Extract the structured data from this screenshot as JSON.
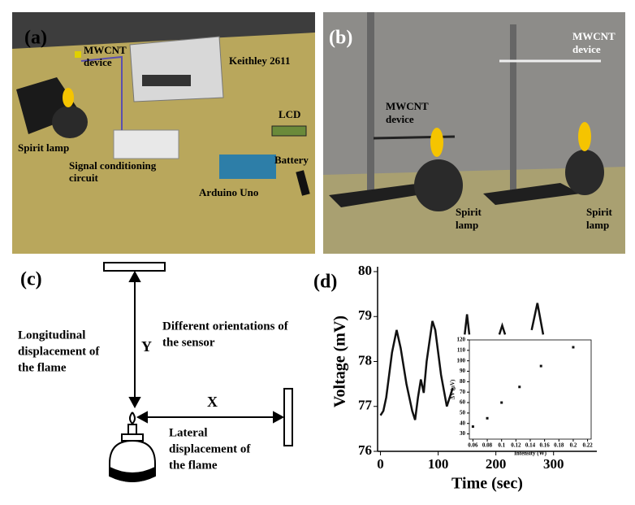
{
  "panel_a": {
    "label": "(a)",
    "mwcnt": [
      "MWCNT",
      "device"
    ],
    "keithley": "Keithley 2611",
    "lamp": "Spirit lamp",
    "lcd": "LCD",
    "circuit": [
      "Signal conditioning",
      "circuit"
    ],
    "battery": "Battery",
    "arduino": "Arduino Uno"
  },
  "panel_b": {
    "label": "(b)",
    "mwcnt_right": [
      "MWCNT",
      "device"
    ],
    "mwcnt_left": [
      "MWCNT",
      "device"
    ],
    "lamp_left": [
      "Spirit",
      "lamp"
    ],
    "lamp_right": [
      "Spirit",
      "lamp"
    ]
  },
  "panel_c": {
    "label": "(c)",
    "longitudinal": [
      "Longitudinal",
      "displacement of",
      "the flame"
    ],
    "y": "Y",
    "orientations": [
      "Different orientations of",
      "the sensor"
    ],
    "x": "X",
    "lateral": [
      "Lateral",
      "displacement of",
      "the flame"
    ]
  },
  "chart_data": [
    {
      "type": "line",
      "panel_label": "(d)",
      "xlabel": "Time (sec)",
      "ylabel": "Voltage (mV)",
      "xlim": [
        -5,
        375
      ],
      "ylim": [
        76,
        80
      ],
      "xticks": [
        0,
        100,
        200,
        300
      ],
      "yticks": [
        76,
        77,
        78,
        79,
        80
      ],
      "x": [
        0,
        5,
        10,
        20,
        28,
        35,
        45,
        55,
        60,
        65,
        70,
        75,
        80,
        90,
        95,
        105,
        115,
        120,
        125,
        null,
        146,
        150,
        154,
        null,
        206,
        211,
        216,
        null,
        262,
        272,
        282
      ],
      "series": [
        {
          "color": "#111111",
          "values": [
            76.8,
            76.9,
            77.2,
            78.2,
            78.7,
            78.3,
            77.5,
            76.9,
            76.7,
            77.2,
            77.6,
            77.3,
            78.0,
            78.9,
            78.7,
            77.7,
            77.0,
            77.2,
            77.4,
            null,
            78.6,
            79.05,
            78.6,
            null,
            78.6,
            78.8,
            78.6,
            null,
            78.7,
            79.3,
            78.6
          ]
        }
      ]
    },
    {
      "type": "scatter",
      "xlabel": "Intensity (W)",
      "ylabel": "ΔV (μV)",
      "xlim": [
        0.055,
        0.225
      ],
      "ylim": [
        25,
        120
      ],
      "xticks": [
        0.06,
        0.08,
        0.1,
        0.12,
        0.14,
        0.16,
        0.18,
        0.2,
        0.22
      ],
      "yticks": [
        30,
        40,
        50,
        60,
        70,
        80,
        90,
        100,
        110,
        120
      ],
      "x": [
        0.06,
        0.08,
        0.1,
        0.125,
        0.155,
        0.2
      ],
      "series": [
        {
          "color": "#111111",
          "values": [
            37,
            45,
            60,
            75,
            95,
            113
          ]
        }
      ]
    }
  ]
}
